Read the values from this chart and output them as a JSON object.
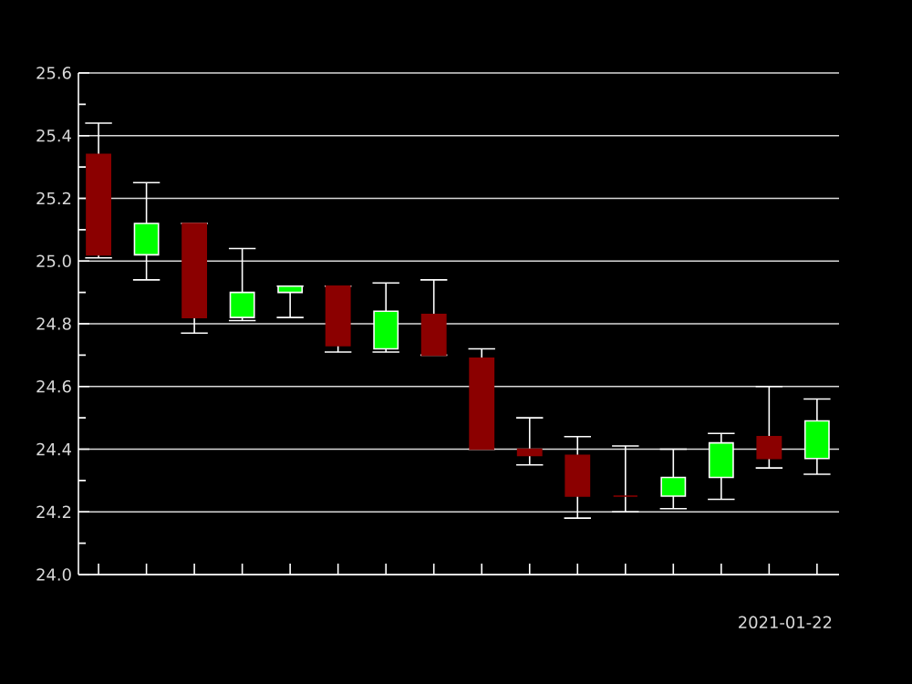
{
  "chart_data": {
    "type": "candlestick",
    "categories": [
      null,
      null,
      null,
      null,
      null,
      null,
      null,
      null,
      null,
      null,
      null,
      null,
      null,
      null,
      null,
      null
    ],
    "ohlc": [
      [
        25.34,
        25.44,
        25.01,
        25.02
      ],
      [
        25.02,
        25.25,
        24.94,
        25.12
      ],
      [
        25.12,
        25.12,
        24.77,
        24.82
      ],
      [
        24.82,
        25.04,
        24.81,
        24.9
      ],
      [
        24.9,
        24.92,
        24.82,
        24.92
      ],
      [
        24.92,
        24.92,
        24.71,
        24.73
      ],
      [
        24.72,
        24.93,
        24.71,
        24.84
      ],
      [
        24.83,
        24.94,
        24.7,
        24.7
      ],
      [
        24.69,
        24.72,
        24.4,
        24.4
      ],
      [
        24.4,
        24.5,
        24.35,
        24.38
      ],
      [
        24.38,
        24.44,
        24.18,
        24.25
      ],
      [
        24.25,
        24.41,
        24.2,
        24.25
      ],
      [
        24.25,
        24.4,
        24.21,
        24.31
      ],
      [
        24.31,
        24.45,
        24.24,
        24.42
      ],
      [
        24.44,
        24.6,
        24.34,
        24.37
      ],
      [
        24.37,
        24.56,
        24.32,
        24.49
      ]
    ],
    "colors": [
      "#8b0000",
      "#00ff00",
      "#8b0000",
      "#00ff00",
      "#00ff00",
      "#8b0000",
      "#00ff00",
      "#8b0000",
      "#8b0000",
      "#8b0000",
      "#8b0000",
      "#8b0000",
      "#00ff00",
      "#00ff00",
      "#8b0000",
      "#00ff00"
    ],
    "ylim": [
      24.0,
      25.6
    ],
    "yticks": [
      {
        "value": 24.0,
        "label": "24.0"
      },
      {
        "value": 24.2,
        "label": "24.2"
      },
      {
        "value": 24.4,
        "label": "24.4"
      },
      {
        "value": 24.6,
        "label": "24.6"
      },
      {
        "value": 24.8,
        "label": "24.8"
      },
      {
        "value": 25.0,
        "label": "25.0"
      },
      {
        "value": 25.2,
        "label": "25.2"
      },
      {
        "value": 25.4,
        "label": "25.4"
      },
      {
        "value": 25.6,
        "label": "25.6"
      }
    ],
    "grid": "y",
    "tick_labels": "y",
    "annotations": [
      "2021-01-22"
    ]
  }
}
